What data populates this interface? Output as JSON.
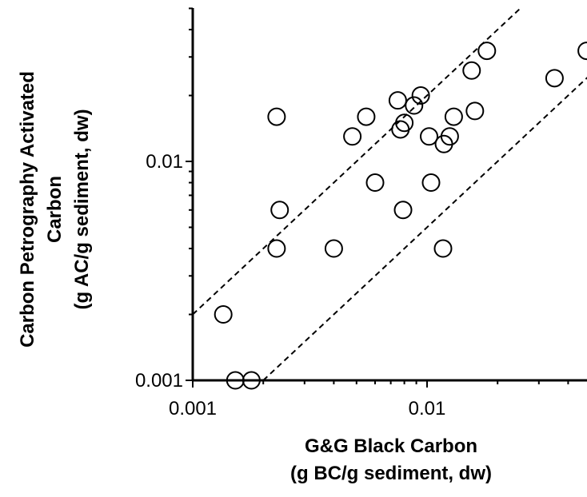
{
  "chart_data": {
    "type": "scatter",
    "title": "",
    "xlabel": [
      "G&G Black Carbon",
      "(g BC/g sediment, dw)"
    ],
    "ylabel": [
      "Carbon Petrography Activated",
      "Carbon",
      "(g AC/g sediment, dw)"
    ],
    "x_scale": "log",
    "y_scale": "log",
    "xlim": [
      0.001,
      0.05
    ],
    "ylim": [
      0.001,
      0.05
    ],
    "x_ticks": [
      {
        "value": 0.001,
        "label": "0.001"
      },
      {
        "value": 0.01,
        "label": "0.01"
      }
    ],
    "y_ticks": [
      {
        "value": 0.001,
        "label": "0.001"
      },
      {
        "value": 0.01,
        "label": "0.01"
      }
    ],
    "grid": false,
    "legend": "none",
    "marker": "open-circle",
    "marker_color": "#000000",
    "reference_lines": [
      {
        "style": "dashed",
        "color": "#000000",
        "points": [
          [
            0.001,
            0.002
          ],
          [
            0.025,
            0.05
          ]
        ]
      },
      {
        "style": "dashed",
        "color": "#000000",
        "points": [
          [
            0.002,
            0.001
          ],
          [
            0.05,
            0.025
          ]
        ]
      }
    ],
    "points": [
      {
        "x": 0.00135,
        "y": 0.002
      },
      {
        "x": 0.00152,
        "y": 0.001
      },
      {
        "x": 0.00178,
        "y": 0.001
      },
      {
        "x": 0.00228,
        "y": 0.016
      },
      {
        "x": 0.00235,
        "y": 0.006
      },
      {
        "x": 0.00228,
        "y": 0.004
      },
      {
        "x": 0.004,
        "y": 0.004
      },
      {
        "x": 0.0048,
        "y": 0.013
      },
      {
        "x": 0.0055,
        "y": 0.016
      },
      {
        "x": 0.006,
        "y": 0.008
      },
      {
        "x": 0.0075,
        "y": 0.019
      },
      {
        "x": 0.0077,
        "y": 0.014
      },
      {
        "x": 0.008,
        "y": 0.015
      },
      {
        "x": 0.0088,
        "y": 0.018
      },
      {
        "x": 0.0094,
        "y": 0.02
      },
      {
        "x": 0.0079,
        "y": 0.006
      },
      {
        "x": 0.0102,
        "y": 0.013
      },
      {
        "x": 0.0104,
        "y": 0.008
      },
      {
        "x": 0.0118,
        "y": 0.012
      },
      {
        "x": 0.0125,
        "y": 0.013
      },
      {
        "x": 0.013,
        "y": 0.016
      },
      {
        "x": 0.0117,
        "y": 0.004
      },
      {
        "x": 0.0155,
        "y": 0.026
      },
      {
        "x": 0.016,
        "y": 0.017
      },
      {
        "x": 0.018,
        "y": 0.032
      },
      {
        "x": 0.035,
        "y": 0.024
      },
      {
        "x": 0.048,
        "y": 0.032
      }
    ]
  }
}
